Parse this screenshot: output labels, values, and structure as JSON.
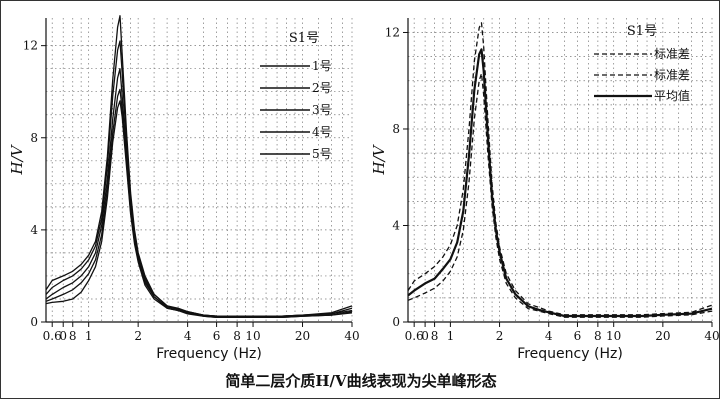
{
  "caption": "简单二层介质H/V曲线表现为尖单峰形态",
  "chart_data": [
    {
      "type": "line",
      "title": "S1号",
      "xlabel": "Frequency (Hz)",
      "ylabel": "H/V",
      "xscale": "log",
      "xlim": [
        0.55,
        40
      ],
      "ylim": [
        0,
        13.2
      ],
      "x_ticks": [
        "0.6",
        "0",
        "8",
        "1",
        "2",
        "4",
        "6",
        "8",
        "10",
        "20",
        "40"
      ],
      "y_ticks": [
        "0",
        "4",
        "8",
        "12"
      ],
      "grid": true,
      "legend_position": "top-right",
      "series": [
        {
          "name": "1号",
          "x": [
            0.55,
            0.6,
            0.7,
            0.8,
            0.9,
            1.0,
            1.1,
            1.2,
            1.3,
            1.4,
            1.5,
            1.55,
            1.6,
            1.7,
            1.8,
            1.9,
            2.0,
            2.2,
            2.5,
            3,
            3.5,
            4,
            5,
            6,
            8,
            10,
            15,
            20,
            30,
            40
          ],
          "y": [
            1.4,
            1.8,
            2.0,
            2.2,
            2.5,
            2.9,
            3.5,
            4.8,
            7.2,
            10.5,
            12.8,
            13.3,
            11.6,
            8.2,
            5.6,
            4.0,
            3.0,
            2.0,
            1.2,
            0.7,
            0.6,
            0.45,
            0.3,
            0.25,
            0.25,
            0.25,
            0.25,
            0.3,
            0.4,
            0.7
          ]
        },
        {
          "name": "2号",
          "x": [
            0.55,
            0.6,
            0.7,
            0.8,
            0.9,
            1.0,
            1.1,
            1.2,
            1.3,
            1.4,
            1.5,
            1.55,
            1.6,
            1.7,
            1.8,
            1.9,
            2.0,
            2.2,
            2.5,
            3,
            3.5,
            4,
            5,
            6,
            8,
            10,
            15,
            20,
            30,
            40
          ],
          "y": [
            1.2,
            1.5,
            1.8,
            2.0,
            2.3,
            2.7,
            3.3,
            4.5,
            6.8,
            9.8,
            11.8,
            12.2,
            10.8,
            7.7,
            5.3,
            3.8,
            2.9,
            1.9,
            1.2,
            0.7,
            0.55,
            0.45,
            0.3,
            0.25,
            0.25,
            0.25,
            0.25,
            0.3,
            0.35,
            0.6
          ]
        },
        {
          "name": "3号",
          "x": [
            0.55,
            0.6,
            0.7,
            0.8,
            0.9,
            1.0,
            1.1,
            1.2,
            1.3,
            1.4,
            1.5,
            1.55,
            1.6,
            1.7,
            1.8,
            1.9,
            2.0,
            2.2,
            2.5,
            3,
            3.5,
            4,
            5,
            6,
            8,
            10,
            15,
            20,
            30,
            40
          ],
          "y": [
            1.0,
            1.2,
            1.5,
            1.7,
            2.0,
            2.4,
            3.0,
            4.2,
            6.2,
            8.8,
            10.6,
            11.0,
            9.8,
            7.2,
            5.0,
            3.6,
            2.8,
            1.8,
            1.1,
            0.65,
            0.55,
            0.4,
            0.3,
            0.25,
            0.2,
            0.2,
            0.25,
            0.3,
            0.35,
            0.5
          ]
        },
        {
          "name": "4号",
          "x": [
            0.55,
            0.6,
            0.7,
            0.8,
            0.9,
            1.0,
            1.1,
            1.2,
            1.3,
            1.4,
            1.5,
            1.55,
            1.6,
            1.7,
            1.8,
            1.9,
            2.0,
            2.2,
            2.5,
            3,
            3.5,
            4,
            5,
            6,
            8,
            10,
            15,
            20,
            30,
            40
          ],
          "y": [
            0.9,
            1.0,
            1.2,
            1.4,
            1.7,
            2.1,
            2.7,
            3.8,
            5.8,
            8.2,
            9.8,
            10.1,
            9.2,
            6.9,
            4.8,
            3.5,
            2.7,
            1.7,
            1.1,
            0.6,
            0.5,
            0.4,
            0.25,
            0.2,
            0.2,
            0.2,
            0.2,
            0.25,
            0.3,
            0.45
          ]
        },
        {
          "name": "5号",
          "x": [
            0.55,
            0.6,
            0.7,
            0.8,
            0.9,
            1.0,
            1.1,
            1.2,
            1.3,
            1.4,
            1.5,
            1.55,
            1.6,
            1.7,
            1.8,
            1.9,
            2.0,
            2.2,
            2.5,
            3,
            3.5,
            4,
            5,
            6,
            8,
            10,
            15,
            20,
            30,
            40
          ],
          "y": [
            0.8,
            0.85,
            0.9,
            1.0,
            1.3,
            1.8,
            2.4,
            3.5,
            5.4,
            7.8,
            9.3,
            9.6,
            8.9,
            6.7,
            4.7,
            3.4,
            2.6,
            1.6,
            1.0,
            0.6,
            0.5,
            0.35,
            0.25,
            0.2,
            0.2,
            0.2,
            0.2,
            0.25,
            0.3,
            0.4
          ]
        }
      ]
    },
    {
      "type": "line",
      "title": "S1号",
      "xlabel": "Frequency (Hz)",
      "ylabel": "H/V",
      "xscale": "log",
      "xlim": [
        0.55,
        40
      ],
      "ylim": [
        0,
        12.6
      ],
      "x_ticks": [
        "0.6",
        "0",
        "8",
        "1",
        "2",
        "4",
        "6",
        "8",
        "10",
        "20",
        "40"
      ],
      "y_ticks": [
        "0",
        "4",
        "8",
        "12"
      ],
      "grid": true,
      "legend_position": "top-right",
      "series": [
        {
          "name": "标准差",
          "style": "dashed",
          "x": [
            0.55,
            0.6,
            0.7,
            0.8,
            0.9,
            1.0,
            1.1,
            1.2,
            1.3,
            1.4,
            1.5,
            1.55,
            1.6,
            1.7,
            1.8,
            1.9,
            2.0,
            2.2,
            2.5,
            3,
            3.5,
            4,
            5,
            6,
            8,
            10,
            15,
            20,
            30,
            40
          ],
          "y": [
            1.3,
            1.7,
            2.0,
            2.3,
            2.7,
            3.2,
            4.0,
            5.5,
            8.0,
            10.8,
            12.2,
            12.4,
            11.4,
            8.3,
            5.7,
            4.1,
            3.1,
            2.0,
            1.3,
            0.75,
            0.6,
            0.45,
            0.3,
            0.3,
            0.3,
            0.3,
            0.3,
            0.35,
            0.4,
            0.7
          ]
        },
        {
          "name": "标准差",
          "style": "dashed",
          "x": [
            0.55,
            0.6,
            0.7,
            0.8,
            0.9,
            1.0,
            1.1,
            1.2,
            1.3,
            1.4,
            1.5,
            1.55,
            1.6,
            1.7,
            1.8,
            1.9,
            2.0,
            2.2,
            2.5,
            3,
            3.5,
            4,
            5,
            6,
            8,
            10,
            15,
            20,
            30,
            40
          ],
          "y": [
            0.9,
            1.0,
            1.2,
            1.4,
            1.7,
            2.1,
            2.7,
            3.8,
            5.8,
            8.4,
            10.0,
            10.3,
            9.4,
            6.9,
            4.8,
            3.5,
            2.6,
            1.6,
            1.0,
            0.55,
            0.45,
            0.35,
            0.2,
            0.2,
            0.2,
            0.2,
            0.2,
            0.25,
            0.3,
            0.45
          ]
        },
        {
          "name": "平均值",
          "style": "solid",
          "x": [
            0.55,
            0.6,
            0.7,
            0.8,
            0.9,
            1.0,
            1.1,
            1.2,
            1.3,
            1.4,
            1.5,
            1.55,
            1.6,
            1.7,
            1.8,
            1.9,
            2.0,
            2.2,
            2.5,
            3,
            3.5,
            4,
            5,
            6,
            8,
            10,
            15,
            20,
            30,
            40
          ],
          "y": [
            1.1,
            1.3,
            1.6,
            1.8,
            2.2,
            2.6,
            3.3,
            4.6,
            6.9,
            9.6,
            11.1,
            11.3,
            10.4,
            7.6,
            5.2,
            3.8,
            2.9,
            1.8,
            1.15,
            0.65,
            0.5,
            0.4,
            0.25,
            0.25,
            0.25,
            0.25,
            0.25,
            0.3,
            0.35,
            0.55
          ]
        }
      ]
    }
  ]
}
